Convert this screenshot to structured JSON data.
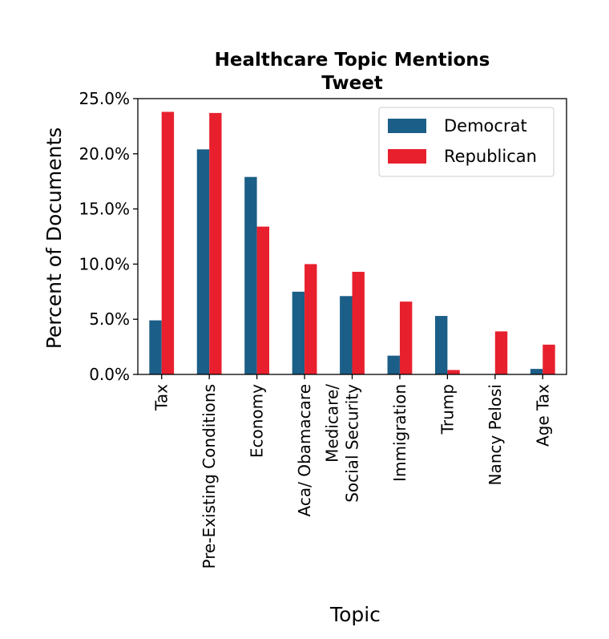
{
  "chart_data": {
    "type": "bar",
    "title": [
      "Healthcare Topic Mentions",
      "Tweet"
    ],
    "xlabel": "Topic",
    "ylabel": "Percent of Documents",
    "categories": [
      [
        "Tax"
      ],
      [
        "Pre-Existing Conditions"
      ],
      [
        "Economy"
      ],
      [
        "Aca/ Obamacare"
      ],
      [
        "Medicare/",
        "Social Security"
      ],
      [
        "Immigration"
      ],
      [
        "Trump"
      ],
      [
        "Nancy Pelosi"
      ],
      [
        "Age Tax"
      ]
    ],
    "series": [
      {
        "name": "Democrat",
        "color": "#1b5e87",
        "values": [
          4.9,
          20.4,
          17.9,
          7.5,
          7.1,
          1.7,
          5.3,
          0.0,
          0.5
        ]
      },
      {
        "name": "Republican",
        "color": "#e8202d",
        "values": [
          23.8,
          23.7,
          13.4,
          10.0,
          9.3,
          6.6,
          0.4,
          3.9,
          2.7
        ]
      }
    ],
    "ylim": [
      0,
      25
    ],
    "yticks": [
      0,
      5,
      10,
      15,
      20,
      25
    ],
    "ytick_labels": [
      "0.0%",
      "5.0%",
      "10.0%",
      "15.0%",
      "20.0%",
      "25.0%"
    ],
    "grid": false,
    "legend_position": "top-right"
  }
}
